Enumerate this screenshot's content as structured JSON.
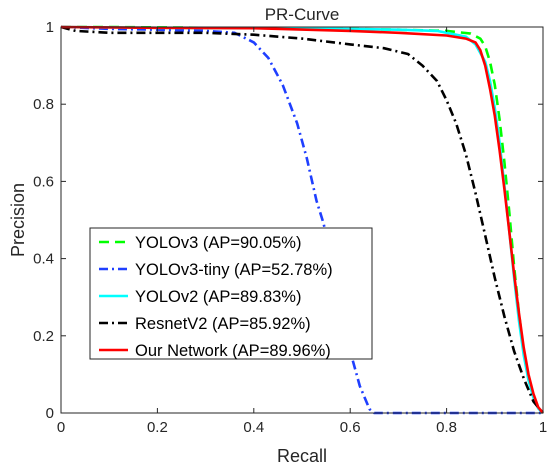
{
  "chart_data": {
    "type": "line",
    "title": "PR-Curve",
    "xlabel": "Recall",
    "ylabel": "Precision",
    "xlim": [
      0,
      1
    ],
    "ylim": [
      0,
      1
    ],
    "x_ticks": [
      "0",
      "0.2",
      "0.4",
      "0.6",
      "0.8",
      "1"
    ],
    "y_ticks": [
      "0",
      "0.2",
      "0.4",
      "0.6",
      "0.8",
      "1"
    ],
    "grid": false,
    "legend_position": "lower-left",
    "series": [
      {
        "name": "YOLOv3 (AP=90.05%)",
        "color": "#00ff00",
        "style": "dashed",
        "points": [
          [
            0,
            1
          ],
          [
            0.1,
            1
          ],
          [
            0.3,
            0.998
          ],
          [
            0.5,
            0.997
          ],
          [
            0.6,
            0.995
          ],
          [
            0.7,
            0.993
          ],
          [
            0.8,
            0.99
          ],
          [
            0.85,
            0.983
          ],
          [
            0.87,
            0.97
          ],
          [
            0.88,
            0.95
          ],
          [
            0.89,
            0.91
          ],
          [
            0.9,
            0.85
          ],
          [
            0.91,
            0.76
          ],
          [
            0.92,
            0.65
          ],
          [
            0.93,
            0.52
          ],
          [
            0.94,
            0.38
          ],
          [
            0.95,
            0.26
          ],
          [
            0.96,
            0.16
          ],
          [
            0.97,
            0.09
          ],
          [
            0.98,
            0.045
          ],
          [
            0.99,
            0.015
          ],
          [
            1,
            0
          ]
        ]
      },
      {
        "name": "YOLOv3-tiny (AP=52.78%)",
        "color": "#1f3fff",
        "style": "dashdot",
        "points": [
          [
            0,
            1
          ],
          [
            0.1,
            0.995
          ],
          [
            0.2,
            0.993
          ],
          [
            0.3,
            0.99
          ],
          [
            0.36,
            0.985
          ],
          [
            0.4,
            0.96
          ],
          [
            0.43,
            0.92
          ],
          [
            0.46,
            0.85
          ],
          [
            0.49,
            0.75
          ],
          [
            0.51,
            0.66
          ],
          [
            0.53,
            0.55
          ],
          [
            0.545,
            0.49
          ],
          [
            0.56,
            0.4
          ],
          [
            0.58,
            0.28
          ],
          [
            0.6,
            0.16
          ],
          [
            0.62,
            0.07
          ],
          [
            0.64,
            0.01
          ],
          [
            0.65,
            0
          ],
          [
            0.7,
            0
          ],
          [
            0.8,
            0
          ],
          [
            0.9,
            0
          ],
          [
            1,
            0
          ]
        ]
      },
      {
        "name": "YOLOv2 (AP=89.83%)",
        "color": "#00ffff",
        "style": "solid",
        "points": [
          [
            0,
            1
          ],
          [
            0.2,
            0.998
          ],
          [
            0.4,
            0.997
          ],
          [
            0.6,
            0.995
          ],
          [
            0.7,
            0.993
          ],
          [
            0.78,
            0.99
          ],
          [
            0.84,
            0.975
          ],
          [
            0.86,
            0.955
          ],
          [
            0.88,
            0.91
          ],
          [
            0.89,
            0.86
          ],
          [
            0.9,
            0.79
          ],
          [
            0.91,
            0.7
          ],
          [
            0.92,
            0.59
          ],
          [
            0.93,
            0.47
          ],
          [
            0.94,
            0.35
          ],
          [
            0.95,
            0.24
          ],
          [
            0.96,
            0.15
          ],
          [
            0.97,
            0.085
          ],
          [
            0.98,
            0.04
          ],
          [
            0.99,
            0.012
          ],
          [
            1,
            0
          ]
        ]
      },
      {
        "name": "ResnetV2 (AP=85.92%)",
        "color": "#000000",
        "style": "dashdot",
        "points": [
          [
            0,
            1
          ],
          [
            0.03,
            0.99
          ],
          [
            0.1,
            0.985
          ],
          [
            0.2,
            0.985
          ],
          [
            0.3,
            0.985
          ],
          [
            0.4,
            0.98
          ],
          [
            0.5,
            0.97
          ],
          [
            0.6,
            0.955
          ],
          [
            0.67,
            0.945
          ],
          [
            0.72,
            0.93
          ],
          [
            0.75,
            0.9
          ],
          [
            0.78,
            0.86
          ],
          [
            0.8,
            0.81
          ],
          [
            0.82,
            0.75
          ],
          [
            0.84,
            0.67
          ],
          [
            0.86,
            0.57
          ],
          [
            0.88,
            0.46
          ],
          [
            0.9,
            0.35
          ],
          [
            0.92,
            0.25
          ],
          [
            0.94,
            0.16
          ],
          [
            0.96,
            0.09
          ],
          [
            0.98,
            0.03
          ],
          [
            1,
            0
          ]
        ]
      },
      {
        "name": "Our Network (AP=89.96%)",
        "color": "#ff0000",
        "style": "solid",
        "points": [
          [
            0,
            1
          ],
          [
            0.2,
            0.998
          ],
          [
            0.4,
            0.997
          ],
          [
            0.6,
            0.99
          ],
          [
            0.7,
            0.985
          ],
          [
            0.8,
            0.978
          ],
          [
            0.84,
            0.97
          ],
          [
            0.86,
            0.96
          ],
          [
            0.87,
            0.94
          ],
          [
            0.88,
            0.9
          ],
          [
            0.89,
            0.84
          ],
          [
            0.9,
            0.77
          ],
          [
            0.91,
            0.68
          ],
          [
            0.92,
            0.58
          ],
          [
            0.93,
            0.47
          ],
          [
            0.94,
            0.36
          ],
          [
            0.95,
            0.26
          ],
          [
            0.96,
            0.17
          ],
          [
            0.97,
            0.1
          ],
          [
            0.98,
            0.05
          ],
          [
            0.99,
            0.015
          ],
          [
            1,
            0
          ]
        ]
      }
    ]
  }
}
